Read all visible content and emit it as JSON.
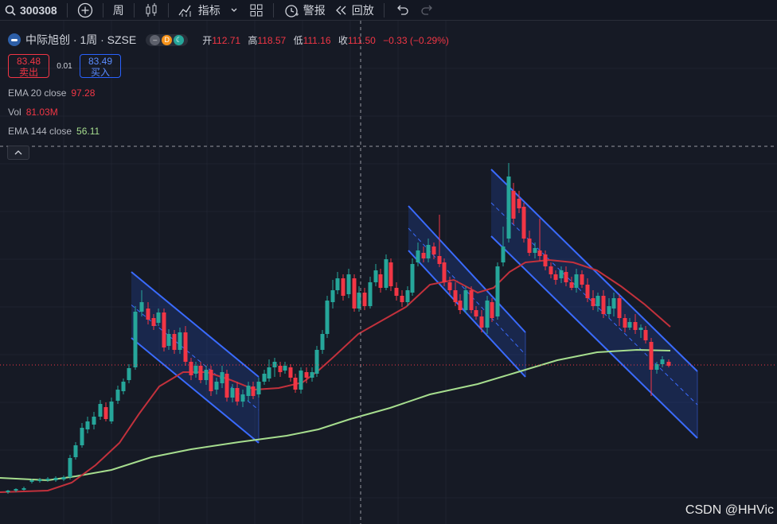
{
  "toolbar": {
    "symbol": "300308",
    "interval": "周",
    "indicators_label": "指标",
    "alert_label": "警报",
    "replay_label": "回放"
  },
  "legend": {
    "title": "中际旭创 · 1周 · SZSE",
    "badge_d": "D",
    "open_label": "开",
    "open": "112.71",
    "high_label": "高",
    "high": "118.57",
    "low_label": "低",
    "low": "111.16",
    "close_label": "收",
    "close": "111.50",
    "change": "−0.33 (−0.29%)"
  },
  "trade": {
    "sell_price": "83.48",
    "sell_label": "卖出",
    "spread": "0.01",
    "buy_price": "83.49",
    "buy_label": "买入"
  },
  "indicators": [
    {
      "name": "EMA 20 close",
      "value": "97.28"
    },
    {
      "name": "Vol",
      "value": "81.03M"
    },
    {
      "name": "EMA 144 close",
      "value": "56.11"
    }
  ],
  "watermark": "CSDN @HHVic",
  "colors": {
    "up": "#26a69a",
    "down": "#f23645",
    "ema20": "#c2313c",
    "ema144": "#a6dd8e",
    "channel": "#2962ff",
    "background": "#161a25"
  }
}
